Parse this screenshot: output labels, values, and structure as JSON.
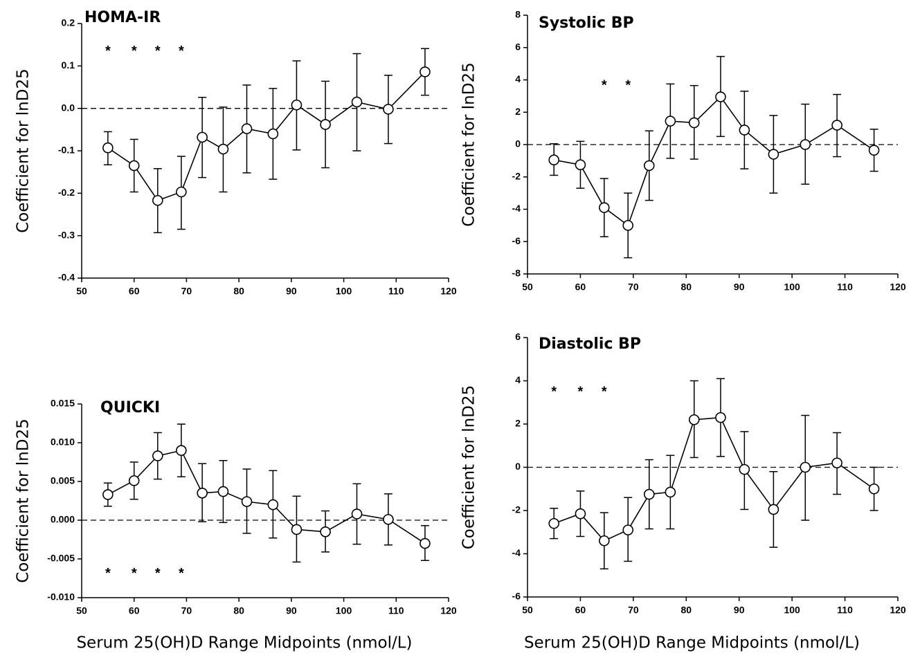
{
  "chart_data": [
    {
      "type": "line",
      "title": "HOMA-IR",
      "y_label": "Coefficient for lnD25",
      "x": [
        55,
        60,
        64.5,
        69,
        73,
        77,
        81.5,
        86.5,
        91,
        96.5,
        102.5,
        108.5,
        115.5
      ],
      "series": [
        {
          "color": "#000000",
          "values": [
            -0.093,
            -0.135,
            -0.217,
            -0.197,
            -0.068,
            -0.096,
            -0.048,
            -0.06,
            0.008,
            -0.038,
            0.015,
            -0.002,
            0.086
          ],
          "upper": [
            -0.055,
            -0.073,
            -0.142,
            -0.113,
            0.026,
            0.003,
            0.055,
            0.047,
            0.112,
            0.064,
            0.129,
            0.078,
            0.141
          ],
          "lower": [
            -0.133,
            -0.197,
            -0.293,
            -0.285,
            -0.163,
            -0.197,
            -0.152,
            -0.167,
            -0.098,
            -0.14,
            -0.1,
            -0.083,
            0.031
          ]
        }
      ],
      "xlim": [
        50,
        120
      ],
      "xticks": [
        50,
        60,
        70,
        80,
        90,
        100,
        110,
        120
      ],
      "ylim": [
        -0.4,
        0.2
      ],
      "yticks": [
        -0.4,
        -0.3,
        -0.2,
        -0.1,
        {
          "value": 0,
          "label": "0.0"
        },
        0.1,
        0.2
      ],
      "reference_line": 0,
      "annotations": [
        {
          "text": "*",
          "x": 55,
          "y": 0.14
        },
        {
          "text": "*",
          "x": 60,
          "y": 0.14
        },
        {
          "text": "*",
          "x": 64.5,
          "y": 0.14
        },
        {
          "text": "*",
          "x": 69,
          "y": 0.14
        }
      ]
    },
    {
      "type": "line",
      "title": "Systolic BP",
      "y_label": "Coefficient for lnD25",
      "x": [
        55,
        60,
        64.5,
        69,
        73,
        77,
        81.5,
        86.5,
        91,
        96.5,
        102.5,
        108.5,
        115.5
      ],
      "series": [
        {
          "color": "#000000",
          "values": [
            -0.95,
            -1.25,
            -3.9,
            -5.0,
            -1.3,
            1.45,
            1.35,
            2.95,
            0.9,
            -0.6,
            0.0,
            1.2,
            -0.35
          ],
          "upper": [
            0.05,
            0.2,
            -2.1,
            -3.0,
            0.85,
            3.75,
            3.65,
            5.45,
            3.3,
            1.8,
            2.5,
            3.1,
            0.95
          ],
          "lower": [
            -1.9,
            -2.7,
            -5.7,
            -7.0,
            -3.45,
            -0.85,
            -0.9,
            0.5,
            -1.5,
            -3.0,
            -2.45,
            -0.75,
            -1.65
          ]
        }
      ],
      "xlim": [
        50,
        120
      ],
      "xticks": [
        50,
        60,
        70,
        80,
        90,
        100,
        110,
        120
      ],
      "ylim": [
        -8,
        8
      ],
      "yticks": [
        -8,
        -6,
        -4,
        -2,
        0,
        2,
        4,
        6,
        8
      ],
      "reference_line": 0,
      "annotations": [
        {
          "text": "*",
          "x": 64.5,
          "y": 3.8
        },
        {
          "text": "*",
          "x": 69,
          "y": 3.8
        }
      ]
    },
    {
      "type": "line",
      "title": "QUICKI",
      "y_label": "Coefficient for lnD25",
      "x_label": "Serum 25(OH)D Range Midpoints (nmol/L)",
      "x": [
        55,
        60,
        64.5,
        69,
        73,
        77,
        81.5,
        86.5,
        91,
        96.5,
        102.5,
        108.5,
        115.5
      ],
      "series": [
        {
          "color": "#000000",
          "values": [
            0.0033,
            0.0051,
            0.0083,
            0.009,
            0.0035,
            0.0037,
            0.0024,
            0.002,
            -0.0012,
            -0.0015,
            0.0008,
            0.0001,
            -0.003
          ],
          "upper": [
            0.0048,
            0.0075,
            0.0113,
            0.0124,
            0.0073,
            0.0077,
            0.0066,
            0.0064,
            0.0031,
            0.0012,
            0.0047,
            0.0034,
            -0.0007
          ],
          "lower": [
            0.0018,
            0.0027,
            0.0053,
            0.0056,
            -0.0002,
            -0.0003,
            -0.0017,
            -0.0023,
            -0.0054,
            -0.0041,
            -0.0031,
            -0.0032,
            -0.0052
          ]
        }
      ],
      "xlim": [
        50,
        120
      ],
      "xticks": [
        50,
        60,
        70,
        80,
        90,
        100,
        110,
        120
      ],
      "ylim": [
        -0.01,
        0.015
      ],
      "yticks": [
        {
          "value": -0.01,
          "label": "-0.010"
        },
        -0.005,
        {
          "value": 0,
          "label": "0.000"
        },
        0.005,
        {
          "value": 0.01,
          "label": "0.010"
        },
        0.015
      ],
      "reference_line": 0,
      "annotations": [
        {
          "text": "*",
          "x": 55,
          "y": -0.0066
        },
        {
          "text": "*",
          "x": 60,
          "y": -0.0066
        },
        {
          "text": "*",
          "x": 64.5,
          "y": -0.0066
        },
        {
          "text": "*",
          "x": 69,
          "y": -0.0066
        }
      ]
    },
    {
      "type": "line",
      "title": "Diastolic BP",
      "y_label": "Coefficient for lnD25",
      "x_label": "Serum 25(OH)D Range Midpoints (nmol/L)",
      "x": [
        55,
        60,
        64.5,
        69,
        73,
        77,
        81.5,
        86.5,
        91,
        96.5,
        102.5,
        108.5,
        115.5
      ],
      "series": [
        {
          "color": "#000000",
          "values": [
            -2.6,
            -2.15,
            -3.4,
            -2.9,
            -1.25,
            -1.15,
            2.2,
            2.3,
            -0.1,
            -1.95,
            0.0,
            0.2,
            -1.0
          ],
          "upper": [
            -1.9,
            -1.1,
            -2.1,
            -1.4,
            0.35,
            0.55,
            4.0,
            4.1,
            1.65,
            -0.2,
            2.4,
            1.6,
            0.0
          ],
          "lower": [
            -3.3,
            -3.2,
            -4.7,
            -4.35,
            -2.85,
            -2.85,
            0.45,
            0.5,
            -1.95,
            -3.7,
            -2.45,
            -1.25,
            -2.0
          ]
        }
      ],
      "xlim": [
        50,
        120
      ],
      "xticks": [
        50,
        60,
        70,
        80,
        90,
        100,
        110,
        120
      ],
      "ylim": [
        -6,
        6
      ],
      "yticks": [
        -6,
        -4,
        -2,
        0,
        2,
        4,
        6
      ],
      "reference_line": 0,
      "annotations": [
        {
          "text": "*",
          "x": 55,
          "y": 3.6
        },
        {
          "text": "*",
          "x": 60,
          "y": 3.6
        },
        {
          "text": "*",
          "x": 64.5,
          "y": 3.6
        }
      ]
    }
  ]
}
